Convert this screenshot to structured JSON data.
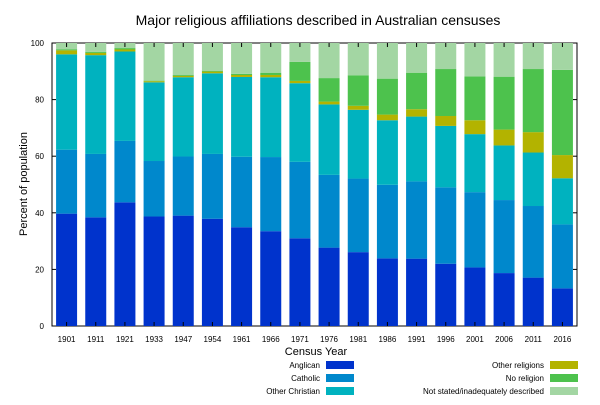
{
  "chart_data": {
    "type": "bar",
    "stacked": true,
    "title": "Major religious affiliations described in Australian censuses",
    "xlabel": "Census Year",
    "ylabel": "Percent of population",
    "ylim": [
      0,
      100
    ],
    "yticks": [
      0,
      20,
      40,
      60,
      80,
      100
    ],
    "grid": false,
    "legend_position": "bottom",
    "categories": [
      "1901",
      "1911",
      "1921",
      "1933",
      "1947",
      "1954",
      "1961",
      "1966",
      "1971",
      "1976",
      "1981",
      "1986",
      "1991",
      "1996",
      "2001",
      "2006",
      "2011",
      "2016"
    ],
    "series": [
      {
        "name": "Anglican",
        "color": "#0033cc",
        "values": [
          39.7,
          38.4,
          43.7,
          38.7,
          39.0,
          37.9,
          34.9,
          33.5,
          31.0,
          27.7,
          26.1,
          23.9,
          23.8,
          22.0,
          20.7,
          18.7,
          17.1,
          13.3
        ]
      },
      {
        "name": "Catholic",
        "color": "#0088cc",
        "values": [
          22.6,
          22.4,
          21.7,
          19.6,
          20.9,
          22.9,
          24.9,
          26.2,
          27.0,
          25.7,
          26.0,
          26.0,
          27.3,
          27.0,
          26.6,
          25.8,
          25.3,
          22.6
        ]
      },
      {
        "name": "Other Christian",
        "color": "#00b2bf",
        "values": [
          33.7,
          34.9,
          31.6,
          27.8,
          28.0,
          28.5,
          28.2,
          28.2,
          27.8,
          24.9,
          24.3,
          22.8,
          22.9,
          21.7,
          20.5,
          19.3,
          18.9,
          16.3
        ]
      },
      {
        "name": "Other religions",
        "color": "#b3b300",
        "values": [
          1.4,
          0.8,
          0.7,
          0.4,
          0.5,
          0.6,
          0.7,
          0.8,
          0.8,
          1.0,
          1.4,
          2.0,
          2.6,
          3.5,
          4.9,
          5.6,
          7.2,
          8.2
        ]
      },
      {
        "name": "No religion",
        "color": "#4dc24d",
        "values": [
          0.4,
          0.4,
          0.5,
          0.2,
          0.3,
          0.3,
          0.4,
          0.8,
          6.7,
          8.3,
          10.8,
          12.7,
          12.9,
          16.6,
          15.5,
          18.7,
          22.3,
          30.1
        ]
      },
      {
        "name": "Not stated/inadequately described",
        "color": "#a3d6a3",
        "values": [
          2.2,
          3.1,
          1.8,
          13.3,
          11.3,
          9.8,
          10.9,
          10.5,
          6.7,
          12.4,
          11.4,
          12.6,
          10.5,
          9.2,
          11.8,
          11.9,
          9.2,
          9.5
        ]
      }
    ]
  }
}
